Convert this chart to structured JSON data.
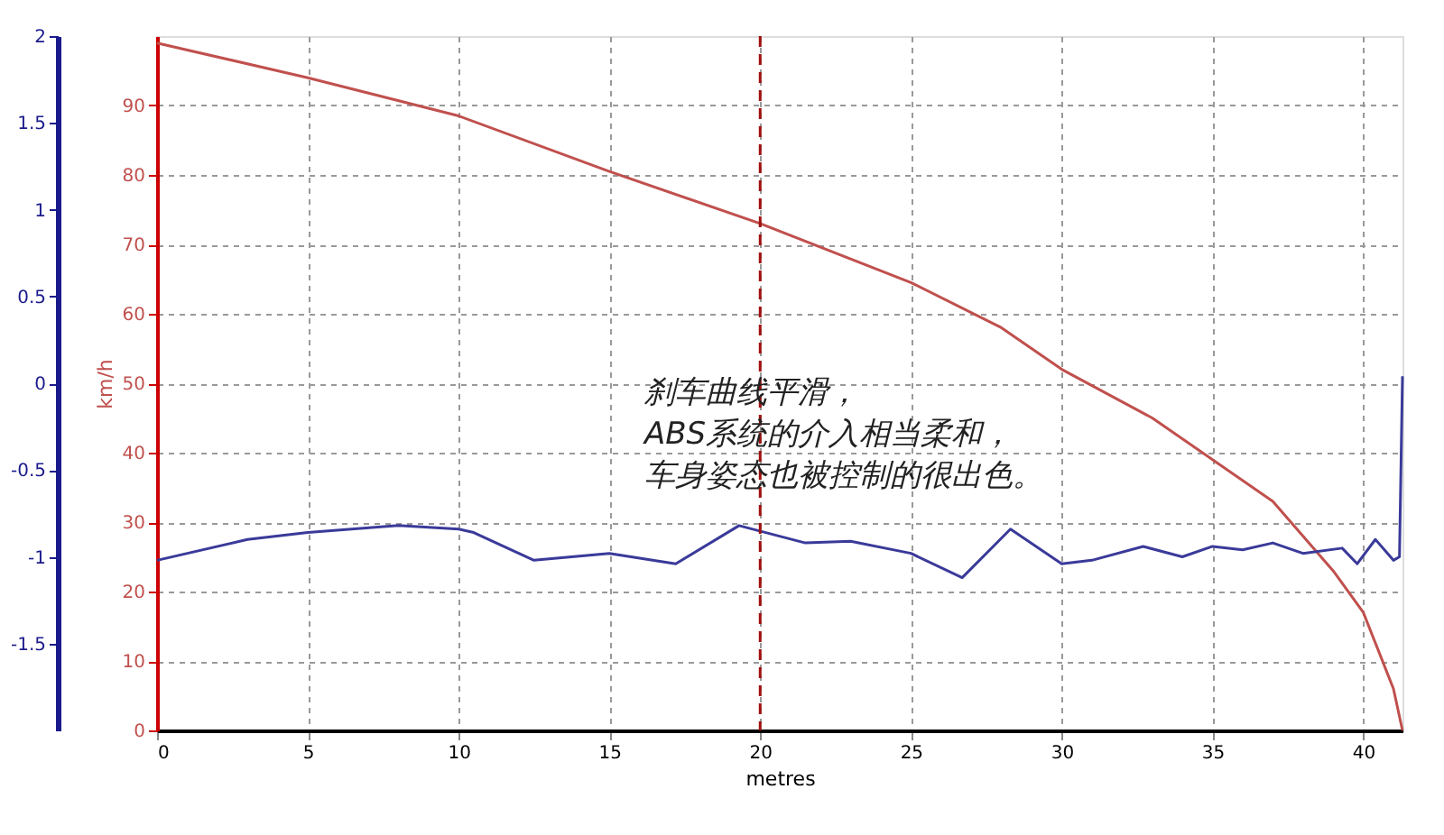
{
  "chart_data": {
    "type": "line",
    "xlabel": "metres",
    "ylabel": "km/h",
    "xlim": [
      0,
      41.3
    ],
    "xticks": [
      0,
      5,
      10,
      15,
      20,
      25,
      30,
      35,
      40
    ],
    "ylim": [
      0,
      100
    ],
    "yticks": [
      0,
      10,
      20,
      30,
      40,
      50,
      60,
      70,
      80,
      90
    ],
    "y2lim": [
      -2,
      2
    ],
    "y2ticks": [
      -1.5,
      -1,
      -0.5,
      0,
      0.5,
      1,
      1.5,
      2
    ],
    "grid": true,
    "marker": "none",
    "line_style": "solid",
    "series": [
      {
        "color": "#c0504d",
        "x": [
          0,
          5,
          10,
          15,
          20,
          25,
          28,
          30,
          33,
          35,
          37,
          39,
          40,
          41,
          41.3
        ],
        "values": [
          99,
          94,
          88.5,
          80.5,
          73,
          64.5,
          58,
          52,
          45,
          39,
          33,
          23,
          17,
          6,
          0
        ]
      },
      {
        "color": "#3a3a9a",
        "axis": "y2",
        "x": [
          0,
          3,
          5,
          8,
          10,
          10.5,
          12.5,
          15,
          17.2,
          19.3,
          21.5,
          23,
          25,
          26.7,
          28.3,
          30,
          31,
          32.7,
          34,
          35,
          36,
          37,
          38,
          39.3,
          39.8,
          40.4,
          41,
          41.2,
          41.3
        ],
        "values": [
          -1.02,
          -0.9,
          -0.86,
          -0.82,
          -0.84,
          -0.86,
          -1.02,
          -0.98,
          -1.04,
          -0.82,
          -0.92,
          -0.91,
          -0.98,
          -1.12,
          -0.84,
          -1.04,
          -1.02,
          -0.94,
          -1.0,
          -0.94,
          -0.96,
          -0.92,
          -0.98,
          -0.95,
          -1.04,
          -0.9,
          -1.02,
          -1.0,
          0.04
        ]
      }
    ],
    "ref_lines": [
      {
        "axis": "x",
        "value": 20,
        "color": "#a01010",
        "line_style": "dashed"
      }
    ],
    "annotations": [
      "刹车曲线平滑，",
      "ABS系统的介入相当柔和，",
      "车身姿态也被控制的很出色。"
    ]
  }
}
